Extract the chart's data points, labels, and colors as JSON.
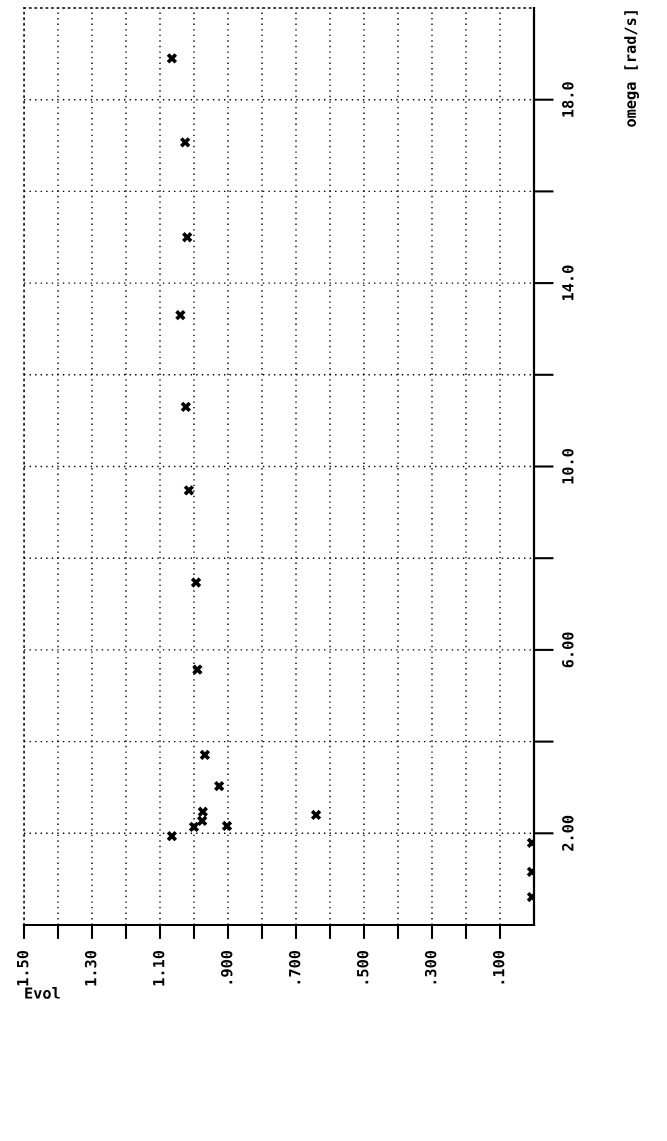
{
  "chart_data": {
    "type": "scatter",
    "xlabel": "Evol",
    "ylabel": "omega [rad/s]",
    "x": [
      1.065,
      1.026,
      1.02,
      1.04,
      1.024,
      1.015,
      0.994,
      0.99,
      0.968,
      0.926,
      0.974,
      0.976,
      1.0,
      0.903,
      0.641,
      1.065,
      0.006,
      0.006,
      0.006
    ],
    "values": [
      18.9,
      17.07,
      15.0,
      13.3,
      11.3,
      9.48,
      7.47,
      5.57,
      3.71,
      3.03,
      2.47,
      2.27,
      2.14,
      2.16,
      2.4,
      1.94,
      1.79,
      1.16,
      0.61
    ],
    "color": "#000000",
    "marker": "cross",
    "grid": true,
    "xlim": [
      1.5,
      0.0
    ],
    "ylim": [
      0,
      20
    ],
    "xticks": [
      {
        "value": 1.5,
        "label": "1.50"
      },
      {
        "value": 1.4,
        "label": null
      },
      {
        "value": 1.3,
        "label": "1.30"
      },
      {
        "value": 1.2,
        "label": null
      },
      {
        "value": 1.1,
        "label": "1.10"
      },
      {
        "value": 1.0,
        "label": null
      },
      {
        "value": 0.9,
        "label": ".900"
      },
      {
        "value": 0.8,
        "label": null
      },
      {
        "value": 0.7,
        "label": ".700"
      },
      {
        "value": 0.6,
        "label": null
      },
      {
        "value": 0.5,
        "label": ".500"
      },
      {
        "value": 0.4,
        "label": null
      },
      {
        "value": 0.3,
        "label": ".300"
      },
      {
        "value": 0.2,
        "label": null
      },
      {
        "value": 0.1,
        "label": ".100"
      }
    ],
    "yticks": [
      {
        "value": 2,
        "label": "2.00"
      },
      {
        "value": 4,
        "label": null
      },
      {
        "value": 6,
        "label": "6.00"
      },
      {
        "value": 8,
        "label": null
      },
      {
        "value": 10,
        "label": "10.0"
      },
      {
        "value": 12,
        "label": null
      },
      {
        "value": 14,
        "label": "14.0"
      },
      {
        "value": 16,
        "label": null
      },
      {
        "value": 18,
        "label": "18.0"
      }
    ]
  }
}
